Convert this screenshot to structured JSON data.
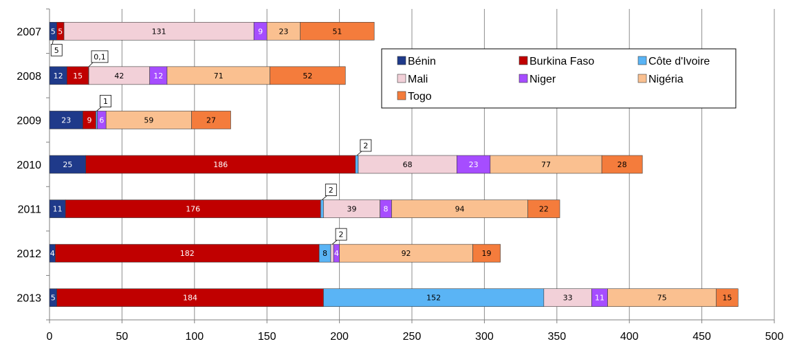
{
  "chart_data": {
    "type": "bar",
    "orientation": "horizontal",
    "stacked": true,
    "categories": [
      "2007",
      "2008",
      "2009",
      "2010",
      "2011",
      "2012",
      "2013"
    ],
    "series": [
      {
        "name": "Bénin",
        "color": "#1f3a8a",
        "values": [
          5,
          12,
          23,
          25,
          11,
          4,
          5
        ]
      },
      {
        "name": "Burkina Faso",
        "color": "#c00000",
        "values": [
          5,
          15,
          9,
          186,
          176,
          182,
          184
        ]
      },
      {
        "name": "Côte d'Ivoire",
        "color": "#5ab4f5",
        "values": [
          0,
          0.1,
          1,
          2,
          2,
          8,
          152
        ]
      },
      {
        "name": "Mali",
        "color": "#f2d0d8",
        "values": [
          131,
          42,
          0,
          68,
          39,
          2,
          33
        ]
      },
      {
        "name": "Niger",
        "color": "#a64dff",
        "values": [
          9,
          12,
          6,
          23,
          8,
          4,
          11
        ]
      },
      {
        "name": "Nigéria",
        "color": "#fac090",
        "values": [
          23,
          71,
          59,
          77,
          94,
          92,
          75
        ]
      },
      {
        "name": "Togo",
        "color": "#f47c3c",
        "values": [
          51,
          52,
          27,
          28,
          22,
          19,
          15
        ]
      }
    ],
    "segment_labels": [
      [
        "5",
        "5",
        "",
        "131",
        "9",
        "23",
        "51"
      ],
      [
        "12",
        "15",
        "",
        "42",
        "12",
        "71",
        "52"
      ],
      [
        "23",
        "9",
        "",
        "",
        "6",
        "59",
        "27"
      ],
      [
        "25",
        "186",
        "",
        "68",
        "23",
        "77",
        "28"
      ],
      [
        "11",
        "176",
        "",
        "39",
        "8",
        "94",
        "22"
      ],
      [
        "4",
        "182",
        "8",
        "",
        "4",
        "92",
        "19"
      ],
      [
        "5",
        "184",
        "152",
        "33",
        "11",
        "75",
        "15"
      ]
    ],
    "callouts": [
      {
        "category": "2007",
        "series": "Bénin",
        "text": "5"
      },
      {
        "category": "2008",
        "series": "Côte d'Ivoire",
        "text": "0,1"
      },
      {
        "category": "2009",
        "series": "Côte d'Ivoire",
        "text": "1"
      },
      {
        "category": "2010",
        "series": "Côte d'Ivoire",
        "text": "2"
      },
      {
        "category": "2011",
        "series": "Côte d'Ivoire",
        "text": "2"
      },
      {
        "category": "2012",
        "series": "Mali",
        "text": "2"
      }
    ],
    "xlim": [
      0,
      500
    ],
    "xticks": [
      0,
      50,
      100,
      150,
      200,
      250,
      300,
      350,
      400,
      450,
      500
    ],
    "grid": "vertical",
    "legend_position": "top-right",
    "title": "",
    "xlabel": "",
    "ylabel": ""
  }
}
